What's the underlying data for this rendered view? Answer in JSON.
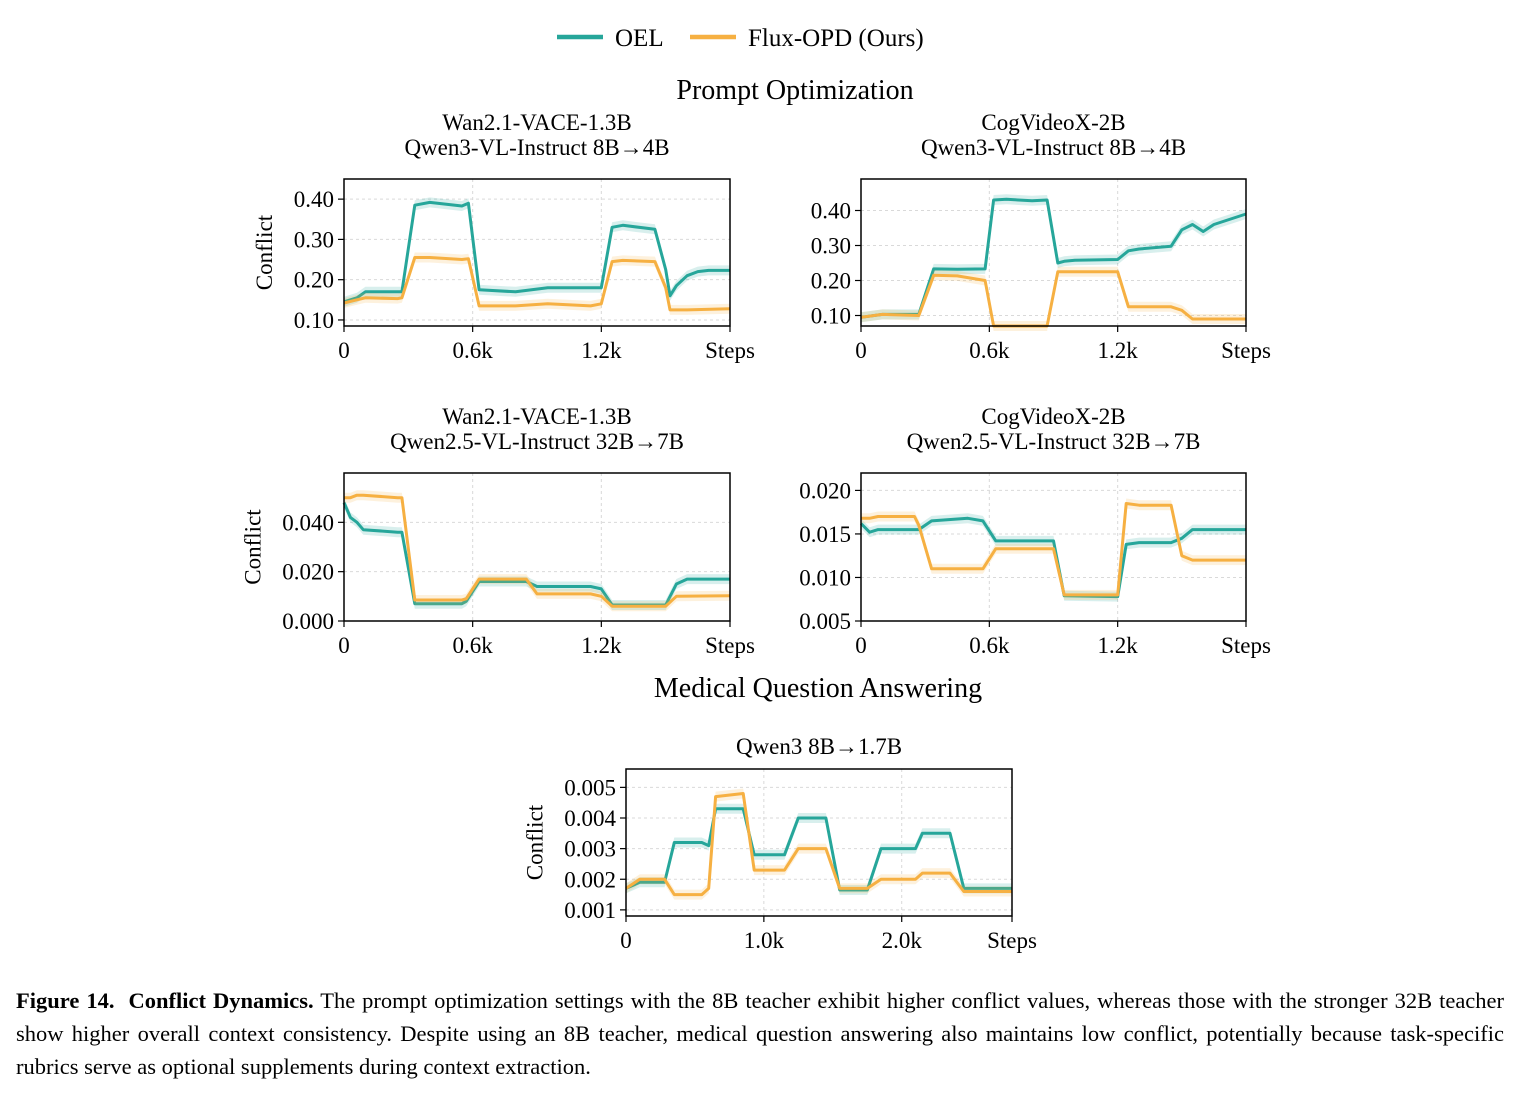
{
  "legend": {
    "items": [
      {
        "name": "OEL",
        "color": "#26A69A"
      },
      {
        "name": "Flux-OPD (Ours)",
        "color": "#F6B042"
      }
    ]
  },
  "sections": {
    "prompt_optimization": "Prompt Optimization",
    "medical_qa": "Medical Question Answering"
  },
  "caption": {
    "label": "Figure 14.",
    "title": "Conflict Dynamics.",
    "text": "The prompt optimization settings with the 8B teacher exhibit higher conflict values, whereas those with the stronger 32B teacher show higher overall context consistency. Despite using an 8B teacher, medical question answering also maintains low conflict, potentially because task-specific rubrics serve as optional supplements during context extraction."
  },
  "chart_data": [
    {
      "type": "line",
      "title": "Wan2.1-VACE-1.3B",
      "subtitle": "Qwen3-VL-Instruct 8B→4B",
      "ylabel": "Conflict",
      "xlim": [
        0,
        1800
      ],
      "ylim": [
        0.085,
        0.45
      ],
      "xticks": [
        0,
        600,
        1200,
        1800
      ],
      "xticklabels": [
        "0",
        "0.6k",
        "1.2k",
        "Steps"
      ],
      "yticks": [
        0.1,
        0.2,
        0.3,
        0.4
      ],
      "yticklabels": [
        "0.10",
        "0.20",
        "0.30",
        "0.40"
      ],
      "grid": true,
      "series": [
        {
          "name": "OEL",
          "color": "#26A69A",
          "x": [
            0,
            60,
            100,
            250,
            270,
            330,
            400,
            550,
            580,
            630,
            800,
            950,
            1150,
            1200,
            1250,
            1300,
            1450,
            1500,
            1520,
            1550,
            1600,
            1650,
            1700,
            1800
          ],
          "y": [
            0.145,
            0.155,
            0.17,
            0.17,
            0.17,
            0.385,
            0.392,
            0.383,
            0.39,
            0.175,
            0.17,
            0.18,
            0.18,
            0.18,
            0.33,
            0.335,
            0.325,
            0.225,
            0.16,
            0.185,
            0.21,
            0.22,
            0.223,
            0.223
          ]
        },
        {
          "name": "Flux-OPD (Ours)",
          "color": "#F6B042",
          "x": [
            0,
            60,
            100,
            250,
            270,
            330,
            400,
            550,
            580,
            630,
            800,
            950,
            1150,
            1200,
            1250,
            1300,
            1450,
            1500,
            1520,
            1600,
            1800
          ],
          "y": [
            0.142,
            0.15,
            0.155,
            0.153,
            0.155,
            0.255,
            0.255,
            0.25,
            0.252,
            0.135,
            0.135,
            0.14,
            0.135,
            0.14,
            0.245,
            0.248,
            0.245,
            0.18,
            0.125,
            0.125,
            0.128
          ]
        }
      ]
    },
    {
      "type": "line",
      "title": "CogVideoX-2B",
      "subtitle": "Qwen3-VL-Instruct 8B→4B",
      "ylabel": "",
      "xlim": [
        0,
        1800
      ],
      "ylim": [
        0.07,
        0.49
      ],
      "xticks": [
        0,
        600,
        1200,
        1800
      ],
      "xticklabels": [
        "0",
        "0.6k",
        "1.2k",
        "Steps"
      ],
      "yticks": [
        0.1,
        0.2,
        0.3,
        0.4
      ],
      "yticklabels": [
        "0.10",
        "0.20",
        "0.30",
        "0.40"
      ],
      "grid": true,
      "series": [
        {
          "name": "OEL",
          "color": "#26A69A",
          "x": [
            0,
            100,
            270,
            340,
            450,
            580,
            620,
            680,
            800,
            870,
            920,
            950,
            1000,
            1200,
            1250,
            1300,
            1450,
            1500,
            1550,
            1600,
            1650,
            1700,
            1800
          ],
          "y": [
            0.095,
            0.103,
            0.103,
            0.233,
            0.232,
            0.233,
            0.43,
            0.432,
            0.428,
            0.43,
            0.25,
            0.255,
            0.258,
            0.26,
            0.285,
            0.29,
            0.298,
            0.345,
            0.36,
            0.34,
            0.36,
            0.37,
            0.39
          ]
        },
        {
          "name": "Flux-OPD (Ours)",
          "color": "#F6B042",
          "x": [
            0,
            100,
            270,
            340,
            450,
            580,
            620,
            680,
            800,
            870,
            920,
            950,
            1000,
            1200,
            1250,
            1300,
            1450,
            1500,
            1550,
            1800
          ],
          "y": [
            0.095,
            0.103,
            0.1,
            0.215,
            0.213,
            0.2,
            0.07,
            0.07,
            0.07,
            0.07,
            0.225,
            0.225,
            0.225,
            0.225,
            0.125,
            0.125,
            0.125,
            0.115,
            0.09,
            0.09
          ]
        }
      ]
    },
    {
      "type": "line",
      "title": "Wan2.1-VACE-1.3B",
      "subtitle": "Qwen2.5-VL-Instruct 32B→7B",
      "ylabel": "Conflict",
      "xlim": [
        0,
        1800
      ],
      "ylim": [
        0.0,
        0.06
      ],
      "xticks": [
        0,
        600,
        1200,
        1800
      ],
      "xticklabels": [
        "0",
        "0.6k",
        "1.2k",
        "Steps"
      ],
      "yticks": [
        0.0,
        0.02,
        0.04
      ],
      "yticklabels": [
        "0.000",
        "0.020",
        "0.040"
      ],
      "grid": true,
      "series": [
        {
          "name": "OEL",
          "color": "#26A69A",
          "x": [
            0,
            30,
            60,
            90,
            250,
            270,
            330,
            550,
            570,
            630,
            850,
            900,
            1150,
            1200,
            1250,
            1300,
            1500,
            1550,
            1600,
            1800
          ],
          "y": [
            0.048,
            0.042,
            0.04,
            0.037,
            0.036,
            0.036,
            0.007,
            0.007,
            0.008,
            0.016,
            0.016,
            0.014,
            0.014,
            0.013,
            0.0065,
            0.0065,
            0.0065,
            0.015,
            0.017,
            0.017
          ]
        },
        {
          "name": "Flux-OPD (Ours)",
          "color": "#F6B042",
          "x": [
            0,
            30,
            60,
            90,
            250,
            270,
            330,
            550,
            570,
            630,
            850,
            900,
            1150,
            1200,
            1250,
            1300,
            1500,
            1550,
            1800
          ],
          "y": [
            0.05,
            0.05,
            0.051,
            0.051,
            0.05,
            0.05,
            0.0085,
            0.0085,
            0.009,
            0.017,
            0.017,
            0.011,
            0.011,
            0.01,
            0.006,
            0.006,
            0.006,
            0.01,
            0.0102
          ]
        }
      ]
    },
    {
      "type": "line",
      "title": "CogVideoX-2B",
      "subtitle": "Qwen2.5-VL-Instruct 32B→7B",
      "ylabel": "",
      "xlim": [
        0,
        1800
      ],
      "ylim": [
        0.005,
        0.022
      ],
      "xticks": [
        0,
        600,
        1200,
        1800
      ],
      "xticklabels": [
        "0",
        "0.6k",
        "1.2k",
        "Steps"
      ],
      "yticks": [
        0.005,
        0.01,
        0.015,
        0.02
      ],
      "yticklabels": [
        "0.005",
        "0.010",
        "0.015",
        "0.020"
      ],
      "grid": true,
      "series": [
        {
          "name": "OEL",
          "color": "#26A69A",
          "x": [
            0,
            40,
            80,
            250,
            270,
            330,
            500,
            570,
            630,
            900,
            950,
            1200,
            1240,
            1300,
            1450,
            1500,
            1550,
            1800
          ],
          "y": [
            0.0162,
            0.0152,
            0.0155,
            0.0155,
            0.0155,
            0.0165,
            0.0168,
            0.0165,
            0.0142,
            0.0142,
            0.0079,
            0.0078,
            0.0138,
            0.014,
            0.014,
            0.0145,
            0.0155,
            0.0155
          ]
        },
        {
          "name": "Flux-OPD (Ours)",
          "color": "#F6B042",
          "x": [
            0,
            40,
            80,
            250,
            270,
            330,
            500,
            570,
            630,
            900,
            950,
            1200,
            1240,
            1300,
            1450,
            1500,
            1550,
            1800
          ],
          "y": [
            0.0168,
            0.0168,
            0.017,
            0.017,
            0.016,
            0.011,
            0.011,
            0.011,
            0.0133,
            0.0133,
            0.008,
            0.008,
            0.0185,
            0.0183,
            0.0183,
            0.0125,
            0.012,
            0.012
          ]
        }
      ]
    },
    {
      "type": "line",
      "title": "Qwen3 8B→1.7B",
      "subtitle": "",
      "ylabel": "Conflict",
      "xlim": [
        0,
        2800
      ],
      "ylim": [
        0.0008,
        0.0056
      ],
      "xticks": [
        0,
        1000,
        2000,
        2800
      ],
      "xticklabels": [
        "0",
        "1.0k",
        "2.0k",
        "Steps"
      ],
      "yticks": [
        0.001,
        0.002,
        0.003,
        0.004,
        0.005
      ],
      "yticklabels": [
        "0.001",
        "0.002",
        "0.003",
        "0.004",
        "0.005"
      ],
      "grid": true,
      "series": [
        {
          "name": "OEL",
          "color": "#26A69A",
          "x": [
            0,
            100,
            280,
            350,
            550,
            600,
            650,
            850,
            930,
            1150,
            1250,
            1450,
            1550,
            1750,
            1850,
            2100,
            2150,
            2350,
            2450,
            2800
          ],
          "y": [
            0.0017,
            0.0019,
            0.0019,
            0.0032,
            0.0032,
            0.0031,
            0.0043,
            0.0043,
            0.0028,
            0.0028,
            0.004,
            0.004,
            0.00165,
            0.00165,
            0.003,
            0.003,
            0.0035,
            0.0035,
            0.0017,
            0.0017
          ]
        },
        {
          "name": "Flux-OPD (Ours)",
          "color": "#F6B042",
          "x": [
            0,
            100,
            280,
            350,
            550,
            600,
            650,
            850,
            930,
            1150,
            1250,
            1450,
            1550,
            1750,
            1850,
            2100,
            2150,
            2350,
            2450,
            2800
          ],
          "y": [
            0.0017,
            0.002,
            0.002,
            0.0015,
            0.0015,
            0.0017,
            0.0047,
            0.0048,
            0.0023,
            0.0023,
            0.003,
            0.003,
            0.0017,
            0.0017,
            0.002,
            0.002,
            0.0022,
            0.0022,
            0.0016,
            0.0016
          ]
        }
      ]
    }
  ]
}
